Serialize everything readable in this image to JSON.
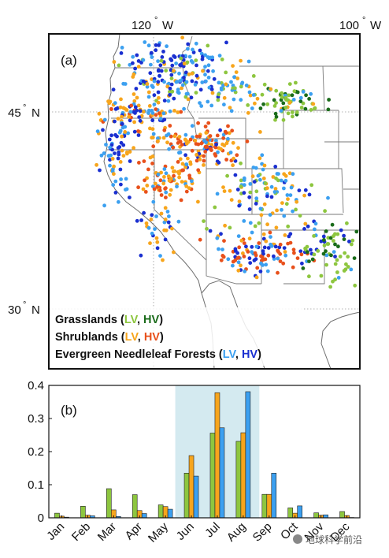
{
  "map_panel": {
    "label": "(a)",
    "lon_ticks": [
      {
        "deg": "120",
        "hemi": "W"
      },
      {
        "deg": "100",
        "hemi": "W"
      }
    ],
    "lat_ticks": [
      {
        "deg": "45",
        "hemi": "N"
      },
      {
        "deg": "30",
        "hemi": "N"
      }
    ],
    "degree_symbol": "°",
    "legend": [
      {
        "name": "Grasslands",
        "lv": "LV",
        "hv": "HV",
        "lv_color": "#8dc63f",
        "hv_color": "#1a6b1a"
      },
      {
        "name": "Shrublands",
        "lv": "LV",
        "hv": "HV",
        "lv_color": "#f7a51c",
        "hv_color": "#e8501b"
      },
      {
        "name": "Evergreen Needleleaf Forests",
        "lv": "LV",
        "hv": "HV",
        "lv_color": "#3ca0f0",
        "hv_color": "#1a2fd0"
      }
    ],
    "legend_punct": {
      "open": " (",
      "sep": ", ",
      "close": ")"
    }
  },
  "chart_data": {
    "type": "bar",
    "label": "(b)",
    "categories": [
      "Jan",
      "Feb",
      "Mar",
      "Apr",
      "May",
      "Jun",
      "Jul",
      "Aug",
      "Sep",
      "Oct",
      "Nov",
      "Dec"
    ],
    "series": [
      {
        "color": "#8dc63f",
        "values": [
          0.014,
          0.035,
          0.088,
          0.07,
          0.039,
          0.135,
          0.256,
          0.231,
          0.071,
          0.03,
          0.015,
          0.019
        ]
      },
      {
        "color": "#f7a51c",
        "values": [
          0.005,
          0.008,
          0.024,
          0.022,
          0.034,
          0.188,
          0.378,
          0.257,
          0.071,
          0.014,
          0.008,
          0.007
        ]
      },
      {
        "color": "#3ca0f0",
        "values": [
          0.002,
          0.006,
          0.004,
          0.013,
          0.026,
          0.126,
          0.272,
          0.381,
          0.135,
          0.036,
          0.009,
          0.001
        ]
      }
    ],
    "ylim": [
      0,
      0.4
    ],
    "yticks": [
      "0",
      "0.1",
      "0.2",
      "0.3",
      "0.4"
    ],
    "highlight": {
      "from": "Jun",
      "to": "Aug",
      "color": "#d4eaf0"
    },
    "grid": false
  },
  "watermark": "地球科学前沿"
}
